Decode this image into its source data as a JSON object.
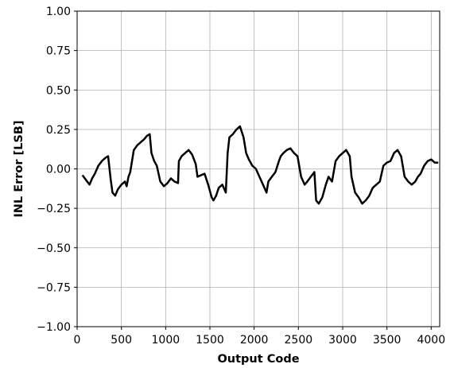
{
  "chart_data": {
    "type": "line",
    "title": "",
    "xlabel": "Output Code",
    "ylabel": "INL Error [LSB]",
    "xlim": [
      0,
      4096
    ],
    "ylim": [
      -1.0,
      1.0
    ],
    "x_ticks": [
      0,
      500,
      1000,
      1500,
      2000,
      2500,
      3000,
      3500,
      4000
    ],
    "x_tick_labels": [
      "0",
      "500",
      "1000",
      "1500",
      "2000",
      "2500",
      "3000",
      "3500",
      "4000"
    ],
    "y_ticks": [
      -1.0,
      -0.75,
      -0.5,
      -0.25,
      0.0,
      0.25,
      0.5,
      0.75,
      1.0
    ],
    "y_tick_labels": [
      "−1.00",
      "−0.75",
      "−0.50",
      "−0.25",
      "0.00",
      "0.25",
      "0.50",
      "0.75",
      "1.00"
    ],
    "grid": true,
    "line_color": "#000000",
    "series": [
      {
        "x": [
          60,
          100,
          140,
          170,
          200,
          240,
          280,
          320,
          350,
          380,
          400,
          430,
          460,
          500,
          540,
          560,
          580,
          600,
          640,
          680,
          720,
          760,
          790,
          820,
          840,
          870,
          900,
          940,
          980,
          1020,
          1060,
          1100,
          1140,
          1150,
          1180,
          1220,
          1260,
          1300,
          1340,
          1360,
          1400,
          1440,
          1480,
          1520,
          1540,
          1570,
          1600,
          1640,
          1680,
          1700,
          1720,
          1760,
          1800,
          1840,
          1880,
          1910,
          1940,
          1980,
          2020,
          2060,
          2100,
          2140,
          2160,
          2200,
          2240,
          2280,
          2300,
          2330,
          2370,
          2410,
          2450,
          2490,
          2530,
          2570,
          2600,
          2640,
          2680,
          2700,
          2730,
          2770,
          2810,
          2840,
          2880,
          2920,
          2960,
          3000,
          3040,
          3080,
          3100,
          3140,
          3180,
          3220,
          3260,
          3300,
          3340,
          3380,
          3420,
          3460,
          3500,
          3540,
          3580,
          3620,
          3660,
          3700,
          3740,
          3780,
          3820,
          3850,
          3880,
          3920,
          3960,
          4000,
          4040,
          4060,
          4080
        ],
        "y": [
          -0.04,
          -0.07,
          -0.1,
          -0.06,
          -0.03,
          0.02,
          0.05,
          0.07,
          0.08,
          -0.07,
          -0.15,
          -0.17,
          -0.13,
          -0.1,
          -0.08,
          -0.11,
          -0.05,
          -0.02,
          0.12,
          0.15,
          0.17,
          0.19,
          0.21,
          0.22,
          0.1,
          0.05,
          0.02,
          -0.08,
          -0.11,
          -0.09,
          -0.06,
          -0.08,
          -0.09,
          0.05,
          0.08,
          0.1,
          0.12,
          0.09,
          0.03,
          -0.05,
          -0.04,
          -0.03,
          -0.1,
          -0.18,
          -0.2,
          -0.17,
          -0.12,
          -0.1,
          -0.15,
          0.1,
          0.2,
          0.22,
          0.25,
          0.27,
          0.2,
          0.1,
          0.06,
          0.02,
          0.0,
          -0.05,
          -0.1,
          -0.15,
          -0.08,
          -0.05,
          -0.02,
          0.05,
          0.08,
          0.1,
          0.12,
          0.13,
          0.1,
          0.08,
          -0.05,
          -0.1,
          -0.08,
          -0.05,
          -0.02,
          -0.2,
          -0.22,
          -0.18,
          -0.1,
          -0.05,
          -0.08,
          0.05,
          0.08,
          0.1,
          0.12,
          0.08,
          -0.05,
          -0.15,
          -0.18,
          -0.22,
          -0.2,
          -0.17,
          -0.12,
          -0.1,
          -0.08,
          0.02,
          0.04,
          0.05,
          0.1,
          0.12,
          0.08,
          -0.05,
          -0.08,
          -0.1,
          -0.08,
          -0.05,
          -0.03,
          0.02,
          0.05,
          0.06,
          0.04,
          0.04,
          0.04
        ]
      }
    ]
  }
}
